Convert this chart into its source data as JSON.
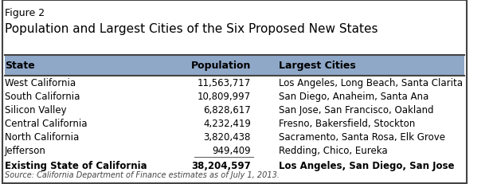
{
  "figure_label": "Figure 2",
  "title": "Population and Largest Cities of the Six Proposed New States",
  "header": [
    "State",
    "Population",
    "Largest Cities"
  ],
  "rows": [
    [
      "West California",
      "11,563,717",
      "Los Angeles, Long Beach, Santa Clarita"
    ],
    [
      "South California",
      "10,809,997",
      "San Diego, Anaheim, Santa Ana"
    ],
    [
      "Silicon Valley",
      "6,828,617",
      "San Jose, San Francisco, Oakland"
    ],
    [
      "Central California",
      "4,232,419",
      "Fresno, Bakersfield, Stockton"
    ],
    [
      "North California",
      "3,820,438",
      "Sacramento, Santa Rosa, Elk Grove"
    ],
    [
      "Jefferson",
      "949,409",
      "Redding, Chico, Eureka"
    ]
  ],
  "total_row": [
    "Existing State of California",
    "38,204,597",
    "Los Angeles, San Diego, San Jose"
  ],
  "source": "Source: California Department of Finance estimates as of July 1, 2013.",
  "header_bg": "#8fa8c8",
  "outer_bg": "#ffffff",
  "border_color": "#444444",
  "header_text_color": "#000000",
  "row_text_color": "#000000",
  "total_text_color": "#000000",
  "col_align": [
    "left",
    "right",
    "left"
  ],
  "header_fontsize": 9,
  "row_fontsize": 8.5,
  "title_fontsize": 11,
  "figure_label_fontsize": 9
}
